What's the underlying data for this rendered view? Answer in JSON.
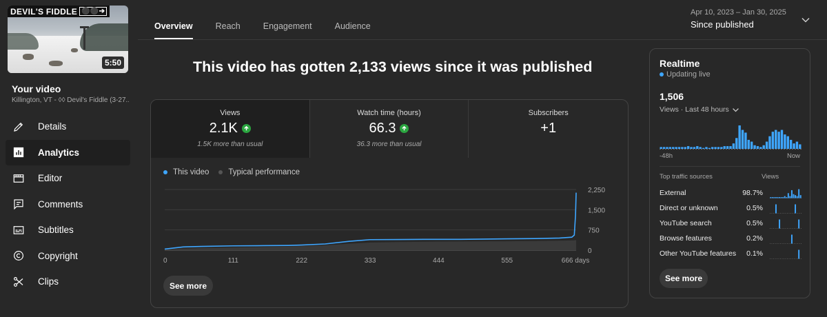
{
  "video": {
    "thumbnail_title": "DEVIL'S FIDDLE",
    "thumbnail_badge": "⚫⚫➔",
    "duration": "5:50",
    "section_label": "Your video",
    "subtitle": "Killington, VT - ◊◊ Devil's Fiddle (3-27..."
  },
  "sidebar": {
    "items": [
      {
        "label": "Details",
        "icon": "pencil-icon"
      },
      {
        "label": "Analytics",
        "icon": "analytics-icon"
      },
      {
        "label": "Editor",
        "icon": "film-icon"
      },
      {
        "label": "Comments",
        "icon": "comment-icon"
      },
      {
        "label": "Subtitles",
        "icon": "subtitles-icon"
      },
      {
        "label": "Copyright",
        "icon": "copyright-icon"
      },
      {
        "label": "Clips",
        "icon": "scissors-icon"
      }
    ],
    "active": "Analytics"
  },
  "tabs": [
    "Overview",
    "Reach",
    "Engagement",
    "Audience"
  ],
  "active_tab": "Overview",
  "date_range": {
    "range": "Apr 10, 2023 – Jan 30, 2025",
    "label": "Since published"
  },
  "headline": "This video has gotten 2,133 views since it was published",
  "metrics": [
    {
      "title": "Views",
      "value": "2.1K",
      "up": true,
      "note": "1.5K more than usual"
    },
    {
      "title": "Watch time (hours)",
      "value": "66.3",
      "up": true,
      "note": "36.3 more than usual"
    },
    {
      "title": "Subscribers",
      "value": "+1",
      "up": false,
      "note": ""
    }
  ],
  "legend": {
    "this_video": "This video",
    "typical": "Typical performance"
  },
  "colors": {
    "accent": "#3ea6ff",
    "typical": "#3a3a3a",
    "positive": "#2ba640",
    "live": "#3ea6ff"
  },
  "chart_data": {
    "type": "area",
    "x": [
      0,
      30,
      60,
      111,
      150,
      200,
      222,
      260,
      300,
      333,
      380,
      420,
      444,
      480,
      520,
      555,
      600,
      640,
      660,
      664,
      666,
      667
    ],
    "xticks": [
      "0",
      "111",
      "222",
      "333",
      "444",
      "555",
      "666 days"
    ],
    "xtick_values": [
      0,
      111,
      222,
      333,
      444,
      555,
      666
    ],
    "yticks": [
      "2,250",
      "1,500",
      "750",
      "0"
    ],
    "ytick_values": [
      2250,
      1500,
      750,
      0
    ],
    "ylim": [
      0,
      2250
    ],
    "xlim": [
      0,
      666
    ],
    "series": [
      {
        "name": "This video",
        "values": [
          40,
          120,
          140,
          160,
          165,
          175,
          190,
          230,
          330,
          390,
          395,
          400,
          400,
          400,
          410,
          420,
          430,
          450,
          480,
          560,
          1300,
          2133
        ]
      },
      {
        "name": "Typical performance",
        "values": [
          20,
          60,
          80,
          95,
          110,
          130,
          150,
          180,
          240,
          280,
          300,
          310,
          315,
          320,
          325,
          330,
          340,
          350,
          360,
          365,
          370,
          370
        ]
      }
    ]
  },
  "see_more": "See more",
  "realtime": {
    "title": "Realtime",
    "live_label": "Updating live",
    "count": "1,506",
    "sub_label": "Views · Last 48 hours",
    "axis_start": "-48h",
    "axis_end": "Now",
    "bars": [
      2,
      2,
      2,
      2,
      2,
      2,
      2,
      2,
      2,
      3,
      2,
      2,
      3,
      2,
      1,
      2,
      1,
      2,
      2,
      2,
      2,
      3,
      3,
      3,
      6,
      12,
      26,
      21,
      18,
      10,
      8,
      4,
      3,
      2,
      4,
      8,
      14,
      19,
      21,
      19,
      21,
      16,
      14,
      10,
      6,
      8,
      5
    ],
    "head_left": "Top traffic sources",
    "head_right": "Views",
    "sources": [
      {
        "name": "External",
        "pct": "98.7%",
        "spark": [
          1,
          1,
          1,
          1,
          1,
          1,
          1,
          1,
          2,
          1,
          5,
          2,
          8,
          4,
          3,
          2,
          9,
          3
        ]
      },
      {
        "name": "Direct or unknown",
        "pct": "0.5%",
        "spark": [
          0,
          0,
          0,
          1,
          0,
          0,
          0,
          0,
          0,
          0,
          0,
          0,
          0,
          0,
          1,
          0,
          0,
          0
        ]
      },
      {
        "name": "YouTube search",
        "pct": "0.5%",
        "spark": [
          0,
          0,
          0,
          0,
          0,
          1,
          0,
          0,
          0,
          0,
          0,
          0,
          0,
          0,
          0,
          0,
          1,
          0
        ]
      },
      {
        "name": "Browse features",
        "pct": "0.2%",
        "spark": [
          0,
          0,
          0,
          0,
          0,
          0,
          0,
          0,
          0,
          0,
          0,
          0,
          1,
          0,
          0,
          0,
          0,
          0
        ]
      },
      {
        "name": "Other YouTube features",
        "pct": "0.1%",
        "spark": [
          0,
          0,
          0,
          0,
          0,
          0,
          0,
          0,
          0,
          0,
          0,
          0,
          0,
          0,
          0,
          0,
          1,
          0
        ]
      }
    ],
    "see_more": "See more"
  }
}
